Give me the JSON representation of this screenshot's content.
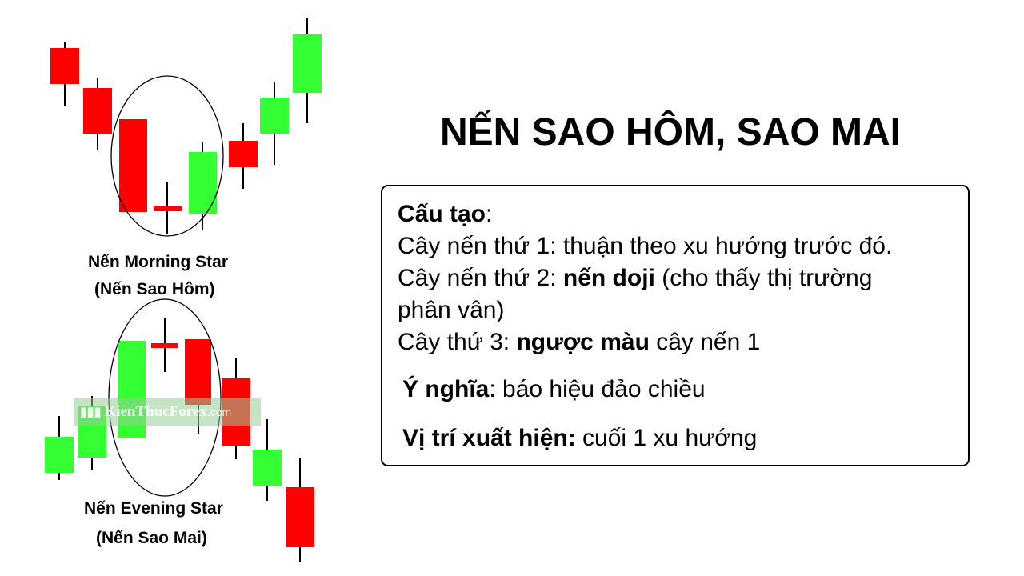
{
  "title": "NẾN SAO HÔM, SAO MAI",
  "morning": {
    "caption_line1": "Nến Morning Star",
    "caption_line2": "(Nến Sao Hôm)"
  },
  "evening": {
    "caption_line1": "Nến Evening Star",
    "caption_line2": "(Nến Sao Mai)"
  },
  "watermark": {
    "text": "KienThucForex",
    "suffix": ".com"
  },
  "info": {
    "structure_label": "Cấu tạo",
    "colon": ":",
    "candle1_line": "Cây nến thứ 1: thuận theo xu hướng trước đó.",
    "candle2_prefix": "Cây nến thứ 2: ",
    "candle2_bold": "nến doji",
    "candle2_suffix": " (cho thấy thị trường",
    "candle2_cont": "phân vân)",
    "candle3_prefix": "Cây thứ 3: ",
    "candle3_bold": "ngược màu",
    "candle3_suffix": " cây nến 1",
    "meaning_label": "Ý nghĩa",
    "meaning_text": ": báo hiệu đảo chiều",
    "position_label": "Vị trí xuất hiện:",
    "position_text": " cuối 1 xu hướng"
  },
  "colors": {
    "bearish": "#ff0000",
    "bullish": "#33ff33",
    "wick": "#000000"
  }
}
